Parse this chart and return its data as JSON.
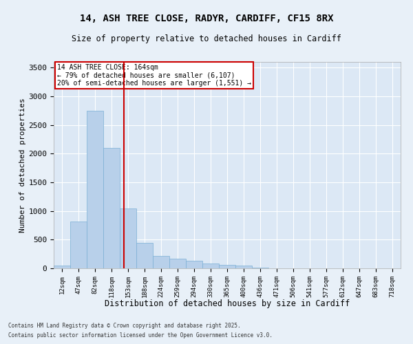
{
  "title_line1": "14, ASH TREE CLOSE, RADYR, CARDIFF, CF15 8RX",
  "title_line2": "Size of property relative to detached houses in Cardiff",
  "xlabel": "Distribution of detached houses by size in Cardiff",
  "ylabel": "Number of detached properties",
  "bin_labels": [
    "12sqm",
    "47sqm",
    "82sqm",
    "118sqm",
    "153sqm",
    "188sqm",
    "224sqm",
    "259sqm",
    "294sqm",
    "330sqm",
    "365sqm",
    "400sqm",
    "436sqm",
    "471sqm",
    "506sqm",
    "541sqm",
    "577sqm",
    "612sqm",
    "647sqm",
    "683sqm",
    "718sqm"
  ],
  "bar_values": [
    50,
    820,
    2750,
    2100,
    1050,
    450,
    220,
    170,
    130,
    80,
    55,
    45,
    15,
    5,
    3,
    2,
    1,
    1,
    0,
    0,
    0
  ],
  "bar_color": "#b8d0ea",
  "bar_edge_color": "#7aafd4",
  "red_line_x": 3.75,
  "annotation_box_text": "14 ASH TREE CLOSE: 164sqm\n← 79% of detached houses are smaller (6,107)\n20% of semi-detached houses are larger (1,551) →",
  "annotation_box_color": "#cc0000",
  "ylim": [
    0,
    3600
  ],
  "yticks": [
    0,
    500,
    1000,
    1500,
    2000,
    2500,
    3000,
    3500
  ],
  "background_color": "#dce8f5",
  "fig_background_color": "#e8f0f8",
  "grid_color": "#ffffff",
  "footer_line1": "Contains HM Land Registry data © Crown copyright and database right 2025.",
  "footer_line2": "Contains public sector information licensed under the Open Government Licence v3.0."
}
